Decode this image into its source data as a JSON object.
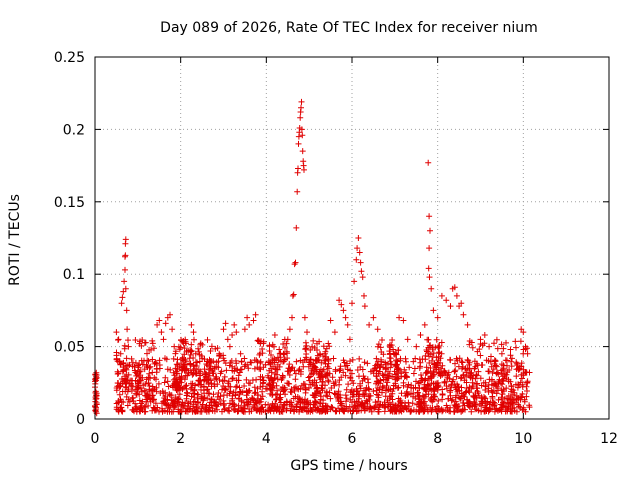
{
  "chart_data": {
    "type": "scatter",
    "title": "Day 089 of 2026, Rate Of TEC Index for receiver nium",
    "xlabel": "GPS time / hours",
    "ylabel": "ROTI / TECUs",
    "xlim": [
      0,
      12
    ],
    "ylim": [
      0,
      0.25
    ],
    "xticks": [
      0,
      2,
      4,
      6,
      8,
      10,
      12
    ],
    "xtick_labels": [
      "0",
      "2",
      "4",
      "6",
      "8",
      "10",
      "12"
    ],
    "yticks": [
      0,
      0.05,
      0.1,
      0.15,
      0.2,
      0.25
    ],
    "ytick_labels": [
      "0",
      "0.05",
      "0.1",
      "0.15",
      "0.2",
      "0.25"
    ],
    "grid": true,
    "marker": "+",
    "color": "#e00000",
    "series": [
      {
        "name": "ROTI",
        "points": [
          [
            0.0,
            0.026
          ],
          [
            0.0,
            0.022
          ],
          [
            0.01,
            0.018
          ],
          [
            0.01,
            0.012
          ],
          [
            0.02,
            0.008
          ],
          [
            0.02,
            0.005
          ],
          [
            0.03,
            0.032
          ],
          [
            0.03,
            0.016
          ],
          [
            0.04,
            0.01
          ],
          [
            0.04,
            0.004
          ],
          [
            0.5,
            0.06
          ],
          [
            0.55,
            0.055
          ],
          [
            0.58,
            0.04
          ],
          [
            0.6,
            0.045
          ],
          [
            0.62,
            0.08
          ],
          [
            0.64,
            0.084
          ],
          [
            0.66,
            0.088
          ],
          [
            0.68,
            0.095
          ],
          [
            0.7,
            0.103
          ],
          [
            0.7,
            0.112
          ],
          [
            0.71,
            0.113
          ],
          [
            0.71,
            0.121
          ],
          [
            0.72,
            0.124
          ],
          [
            0.72,
            0.09
          ],
          [
            0.74,
            0.075
          ],
          [
            0.75,
            0.062
          ],
          [
            0.78,
            0.05
          ],
          [
            1.45,
            0.065
          ],
          [
            1.5,
            0.068
          ],
          [
            1.55,
            0.06
          ],
          [
            1.6,
            0.055
          ],
          [
            1.65,
            0.066
          ],
          [
            1.7,
            0.07
          ],
          [
            1.75,
            0.072
          ],
          [
            1.8,
            0.062
          ],
          [
            1.85,
            0.05
          ],
          [
            2.25,
            0.065
          ],
          [
            2.3,
            0.06
          ],
          [
            2.35,
            0.045
          ],
          [
            2.5,
            0.042
          ],
          [
            2.6,
            0.038
          ],
          [
            2.7,
            0.035
          ],
          [
            2.9,
            0.045
          ],
          [
            3.0,
            0.062
          ],
          [
            3.05,
            0.066
          ],
          [
            3.1,
            0.055
          ],
          [
            3.15,
            0.05
          ],
          [
            3.2,
            0.058
          ],
          [
            3.25,
            0.065
          ],
          [
            3.3,
            0.06
          ],
          [
            3.4,
            0.045
          ],
          [
            3.5,
            0.062
          ],
          [
            3.55,
            0.07
          ],
          [
            3.6,
            0.065
          ],
          [
            3.7,
            0.068
          ],
          [
            3.75,
            0.072
          ],
          [
            4.2,
            0.058
          ],
          [
            4.3,
            0.048
          ],
          [
            4.4,
            0.045
          ],
          [
            4.5,
            0.055
          ],
          [
            4.55,
            0.062
          ],
          [
            4.6,
            0.07
          ],
          [
            4.62,
            0.085
          ],
          [
            4.64,
            0.086
          ],
          [
            4.66,
            0.107
          ],
          [
            4.68,
            0.108
          ],
          [
            4.7,
            0.132
          ],
          [
            4.72,
            0.157
          ],
          [
            4.73,
            0.17
          ],
          [
            4.74,
            0.173
          ],
          [
            4.75,
            0.19
          ],
          [
            4.76,
            0.195
          ],
          [
            4.77,
            0.198
          ],
          [
            4.78,
            0.201
          ],
          [
            4.79,
            0.208
          ],
          [
            4.8,
            0.212
          ],
          [
            4.81,
            0.215
          ],
          [
            4.82,
            0.219
          ],
          [
            4.83,
            0.2
          ],
          [
            4.84,
            0.196
          ],
          [
            4.85,
            0.185
          ],
          [
            4.86,
            0.178
          ],
          [
            4.87,
            0.175
          ],
          [
            4.88,
            0.172
          ],
          [
            4.9,
            0.07
          ],
          [
            4.95,
            0.06
          ],
          [
            5.5,
            0.068
          ],
          [
            5.6,
            0.06
          ],
          [
            5.7,
            0.082
          ],
          [
            5.75,
            0.079
          ],
          [
            5.8,
            0.075
          ],
          [
            5.85,
            0.07
          ],
          [
            5.9,
            0.065
          ],
          [
            5.95,
            0.055
          ],
          [
            6.0,
            0.08
          ],
          [
            6.05,
            0.095
          ],
          [
            6.1,
            0.11
          ],
          [
            6.12,
            0.118
          ],
          [
            6.15,
            0.125
          ],
          [
            6.18,
            0.115
          ],
          [
            6.2,
            0.108
          ],
          [
            6.22,
            0.102
          ],
          [
            6.25,
            0.098
          ],
          [
            6.28,
            0.085
          ],
          [
            6.3,
            0.078
          ],
          [
            6.4,
            0.065
          ],
          [
            6.5,
            0.07
          ],
          [
            6.6,
            0.062
          ],
          [
            7.1,
            0.07
          ],
          [
            7.2,
            0.068
          ],
          [
            7.3,
            0.055
          ],
          [
            7.5,
            0.05
          ],
          [
            7.6,
            0.058
          ],
          [
            7.7,
            0.065
          ],
          [
            7.78,
            0.177
          ],
          [
            7.8,
            0.14
          ],
          [
            7.82,
            0.13
          ],
          [
            7.8,
            0.118
          ],
          [
            7.79,
            0.104
          ],
          [
            7.81,
            0.098
          ],
          [
            7.85,
            0.09
          ],
          [
            7.9,
            0.075
          ],
          [
            8.0,
            0.07
          ],
          [
            8.1,
            0.085
          ],
          [
            8.2,
            0.082
          ],
          [
            8.3,
            0.078
          ],
          [
            8.35,
            0.09
          ],
          [
            8.4,
            0.091
          ],
          [
            8.45,
            0.085
          ],
          [
            8.5,
            0.078
          ],
          [
            8.55,
            0.08
          ],
          [
            8.6,
            0.072
          ],
          [
            8.7,
            0.065
          ],
          [
            9.0,
            0.055
          ],
          [
            9.1,
            0.058
          ],
          [
            9.2,
            0.05
          ],
          [
            9.5,
            0.045
          ],
          [
            9.7,
            0.048
          ],
          [
            9.95,
            0.062
          ],
          [
            10.0,
            0.06
          ],
          [
            10.05,
            0.05
          ],
          [
            10.1,
            0.045
          ]
        ],
        "dense_band": {
          "x_range": [
            0.5,
            10.15
          ],
          "y_range": [
            0.005,
            0.042
          ]
        },
        "gap_spikes": [
          [
            0.5,
            1.45
          ],
          [
            1.85,
            2.25
          ],
          [
            2.25,
            3.0
          ],
          [
            3.75,
            4.55
          ],
          [
            4.9,
            5.5
          ],
          [
            6.6,
            7.1
          ],
          [
            7.7,
            8.1
          ],
          [
            8.7,
            10.1
          ]
        ]
      }
    ]
  }
}
